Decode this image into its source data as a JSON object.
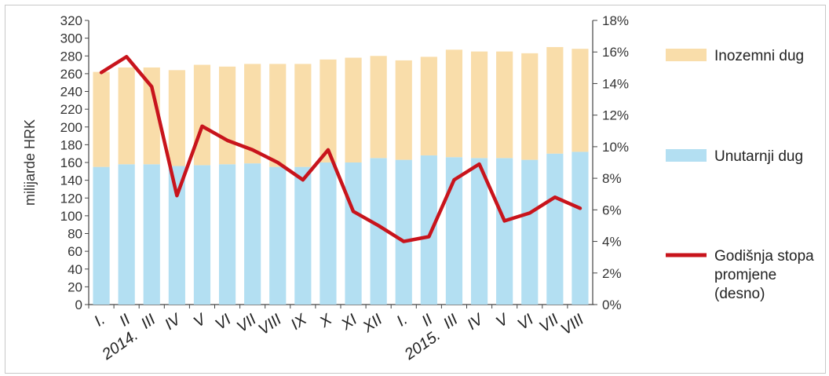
{
  "chart_data": {
    "type": "bar",
    "stacked": true,
    "categories": [
      "I.",
      "II",
      "III",
      "IV",
      "V",
      "VI",
      "VII",
      "VIII",
      "IX",
      "X",
      "XI",
      "XII",
      "I.",
      "II",
      "III",
      "IV",
      "V",
      "VI",
      "VII",
      "VIII"
    ],
    "year_labels": [
      "2014.",
      "2015."
    ],
    "ylabel": "milijarde HRK",
    "ylim": [
      0,
      320
    ],
    "y_ticks": [
      0,
      20,
      40,
      60,
      80,
      100,
      120,
      140,
      160,
      180,
      200,
      220,
      240,
      260,
      280,
      300,
      320
    ],
    "y2lim": [
      0,
      18
    ],
    "y2_ticks": [
      "0%",
      "2%",
      "4%",
      "6%",
      "8%",
      "10%",
      "12%",
      "14%",
      "16%",
      "18%"
    ],
    "series": [
      {
        "name": "Unutarnji dug",
        "color": "#b3dff2",
        "values": [
          155,
          158,
          158,
          156,
          157,
          158,
          159,
          155,
          155,
          160,
          160,
          165,
          163,
          168,
          166,
          165,
          165,
          163,
          170,
          172
        ]
      },
      {
        "name": "Inozemni dug",
        "color": "#f9ddaa",
        "values": [
          107,
          109,
          109,
          108,
          113,
          110,
          112,
          116,
          116,
          116,
          118,
          115,
          112,
          111,
          121,
          120,
          120,
          120,
          120,
          116
        ]
      },
      {
        "name": "Godišnja stopa promjene (desno)",
        "color": "#c8141c",
        "type": "line",
        "axis": "right",
        "values": [
          14.7,
          15.7,
          13.8,
          6.9,
          11.3,
          10.4,
          9.8,
          9.0,
          7.9,
          9.8,
          5.9,
          5.0,
          4.0,
          4.3,
          7.9,
          8.9,
          5.3,
          5.8,
          6.8,
          6.1
        ]
      }
    ],
    "legend": [
      {
        "label": "Inozemni dug",
        "color": "#f9ddaa",
        "kind": "box"
      },
      {
        "label": "Unutarnji dug",
        "color": "#b3dff2",
        "kind": "box"
      },
      {
        "label": "Godišnja stopa promjene (desno)",
        "color": "#c8141c",
        "kind": "line",
        "lines": [
          "Godišnja stopa",
          "promjene",
          "(desno)"
        ]
      }
    ],
    "legend_position": "right",
    "grid": false
  }
}
